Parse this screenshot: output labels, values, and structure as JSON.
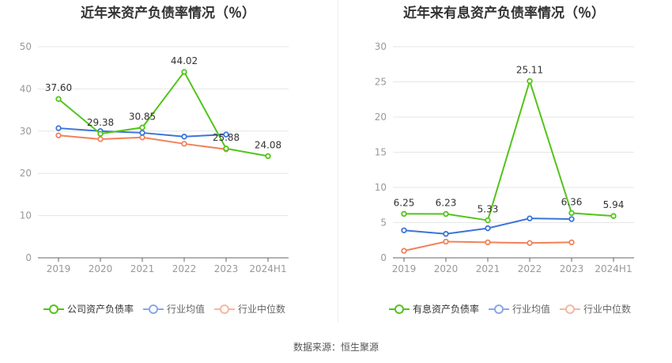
{
  "source": "数据来源：恒生聚源",
  "chart_data": [
    {
      "type": "line",
      "title": "近年来资产负债率情况（％）",
      "categories": [
        "2019",
        "2020",
        "2021",
        "2022",
        "2023",
        "2024H1"
      ],
      "ylim": [
        0,
        50
      ],
      "yticks": [
        0,
        10,
        20,
        30,
        40,
        50
      ],
      "grid": true,
      "legend": "bottom",
      "series": [
        {
          "name": "公司资产负债率",
          "color": "#52c41a",
          "values": [
            37.6,
            29.38,
            30.85,
            44.02,
            25.88,
            24.08
          ],
          "labels": true
        },
        {
          "name": "行业均值",
          "color": "#3b74d9",
          "values": [
            30.7,
            30.0,
            29.6,
            28.7,
            29.2,
            null
          ],
          "labels": false
        },
        {
          "name": "行业中位数",
          "color": "#f0825a",
          "values": [
            29.0,
            28.1,
            28.5,
            27.0,
            25.7,
            null
          ],
          "labels": false
        }
      ]
    },
    {
      "type": "line",
      "title": "近年来有息资产负债率情况（％）",
      "categories": [
        "2019",
        "2020",
        "2021",
        "2022",
        "2023",
        "2024H1"
      ],
      "ylim": [
        0,
        30
      ],
      "yticks": [
        0,
        5,
        10,
        15,
        20,
        25,
        30
      ],
      "grid": true,
      "legend": "bottom",
      "series": [
        {
          "name": "有息资产负债率",
          "color": "#52c41a",
          "values": [
            6.25,
            6.23,
            5.33,
            25.11,
            6.36,
            5.94
          ],
          "labels": true
        },
        {
          "name": "行业均值",
          "color": "#3b74d9",
          "values": [
            3.9,
            3.4,
            4.2,
            5.6,
            5.5,
            null
          ],
          "labels": false
        },
        {
          "name": "行业中位数",
          "color": "#f0825a",
          "values": [
            1.0,
            2.3,
            2.2,
            2.1,
            2.2,
            null
          ],
          "labels": false
        }
      ]
    }
  ]
}
